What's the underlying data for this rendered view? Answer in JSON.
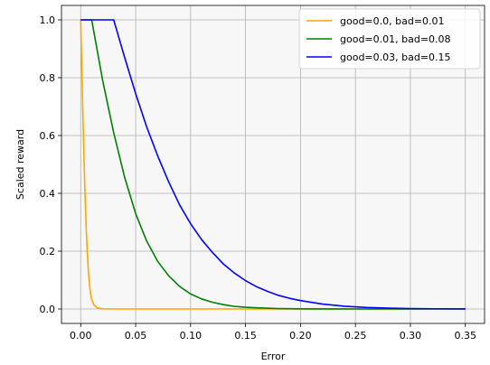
{
  "chart_data": {
    "type": "line",
    "title": "",
    "xlabel": "Error",
    "ylabel": "Scaled reward",
    "xlim": [
      -0.0175,
      0.3675
    ],
    "ylim": [
      -0.05,
      1.05
    ],
    "xticks": [
      0.0,
      0.05,
      0.1,
      0.15,
      0.2,
      0.25,
      0.3,
      0.35
    ],
    "xtick_labels": [
      "0.00",
      "0.05",
      "0.10",
      "0.15",
      "0.20",
      "0.25",
      "0.30",
      "0.35"
    ],
    "yticks": [
      0.0,
      0.2,
      0.4,
      0.6,
      0.8,
      1.0
    ],
    "ytick_labels": [
      "0.0",
      "0.2",
      "0.4",
      "0.6",
      "0.8",
      "1.0"
    ],
    "grid": true,
    "plot_background": "#f7f7f7",
    "legend_position": "upper right",
    "series": [
      {
        "name": "good=0.0, bad=0.01",
        "color": "#ffa500",
        "x": [
          0.0,
          0.001,
          0.002,
          0.003,
          0.004,
          0.005,
          0.006,
          0.007,
          0.008,
          0.009,
          0.01,
          0.012,
          0.015,
          0.02,
          0.03,
          0.35
        ],
        "y": [
          1.0,
          0.83,
          0.67,
          0.52,
          0.39,
          0.28,
          0.195,
          0.13,
          0.085,
          0.054,
          0.034,
          0.014,
          0.004,
          0.0008,
          0.0,
          0.0
        ]
      },
      {
        "name": "good=0.01, bad=0.08",
        "color": "#008000",
        "x": [
          0.0,
          0.01,
          0.02,
          0.03,
          0.04,
          0.05,
          0.06,
          0.07,
          0.08,
          0.09,
          0.1,
          0.11,
          0.12,
          0.13,
          0.14,
          0.15,
          0.16,
          0.18,
          0.2,
          0.22,
          0.25,
          0.3,
          0.35
        ],
        "y": [
          1.0,
          1.0,
          0.79,
          0.61,
          0.455,
          0.33,
          0.235,
          0.165,
          0.115,
          0.078,
          0.052,
          0.035,
          0.023,
          0.015,
          0.009,
          0.006,
          0.004,
          0.0015,
          0.0006,
          0.0002,
          0.0,
          0.0,
          0.0
        ]
      },
      {
        "name": "good=0.03, bad=0.15",
        "color": "#0000ff",
        "x": [
          0.0,
          0.03,
          0.04,
          0.05,
          0.06,
          0.07,
          0.08,
          0.09,
          0.1,
          0.11,
          0.12,
          0.13,
          0.14,
          0.15,
          0.16,
          0.17,
          0.18,
          0.19,
          0.2,
          0.22,
          0.24,
          0.26,
          0.28,
          0.3,
          0.32,
          0.35
        ],
        "y": [
          1.0,
          1.0,
          0.87,
          0.745,
          0.63,
          0.53,
          0.44,
          0.36,
          0.295,
          0.24,
          0.195,
          0.155,
          0.124,
          0.098,
          0.077,
          0.061,
          0.047,
          0.037,
          0.029,
          0.017,
          0.0095,
          0.0052,
          0.0028,
          0.0015,
          0.0008,
          0.0003
        ]
      }
    ]
  }
}
